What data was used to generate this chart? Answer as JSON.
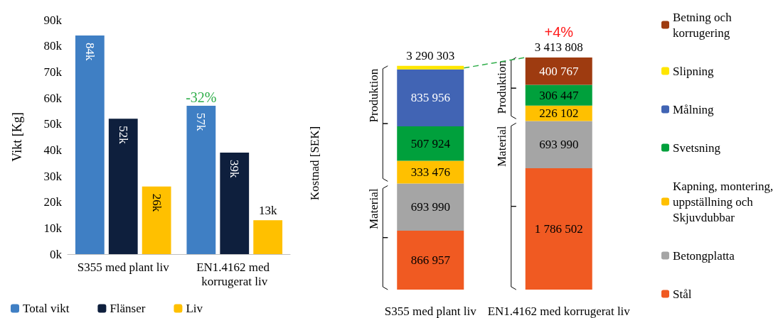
{
  "chart_data": [
    {
      "type": "bar",
      "ylabel": "Vikt [Kg]",
      "categories": [
        "S355 med plant liv",
        "EN1.4162 med korrugerat liv"
      ],
      "series": [
        {
          "name": "Total vikt",
          "color": "#3f7fc4",
          "values": [
            84000,
            57000
          ],
          "value_labels": [
            "84k",
            "57k"
          ]
        },
        {
          "name": "Flänser",
          "color": "#0e1f3d",
          "values": [
            52000,
            39000
          ],
          "value_labels": [
            "52k",
            "39k"
          ]
        },
        {
          "name": "Liv",
          "color": "#ffc000",
          "values": [
            26000,
            13000
          ],
          "value_labels": [
            "26k",
            "13k"
          ]
        }
      ],
      "ylim": [
        0,
        90000
      ],
      "yticks": [
        {
          "value": 0,
          "label": "0k"
        },
        {
          "value": 10000,
          "label": "10k"
        },
        {
          "value": 20000,
          "label": "20k"
        },
        {
          "value": 30000,
          "label": "30k"
        },
        {
          "value": 40000,
          "label": "40k"
        },
        {
          "value": 50000,
          "label": "50k"
        },
        {
          "value": 60000,
          "label": "60k"
        },
        {
          "value": 70000,
          "label": "70k"
        },
        {
          "value": 80000,
          "label": "80k"
        },
        {
          "value": 90000,
          "label": "90k"
        }
      ],
      "annotations": [
        "-32%"
      ],
      "legend": "bottom"
    },
    {
      "type": "bar",
      "stacked": true,
      "ylabel": "Kostnad [SEK]",
      "categories": [
        "S355 med plant liv",
        "EN1.4162 med korrugerat liv"
      ],
      "series": [
        {
          "name": "Stål",
          "color": "#f05a22",
          "values": [
            866957,
            1786502
          ],
          "value_labels": [
            "866 957",
            "1 786 502"
          ]
        },
        {
          "name": "Betongplatta",
          "color": "#a5a5a5",
          "values": [
            693990,
            693990
          ],
          "value_labels": [
            "693 990",
            "693 990"
          ]
        },
        {
          "name": "Kapning, montering, uppställning och Skjuvdubbar",
          "color": "#ffc000",
          "values": [
            333476,
            226102
          ],
          "value_labels": [
            "333 476",
            "226 102"
          ]
        },
        {
          "name": "Svetsning",
          "color": "#00a03c",
          "values": [
            507924,
            306447
          ],
          "value_labels": [
            "507 924",
            "306 447"
          ]
        },
        {
          "name": "Målning",
          "color": "#4164b4",
          "values": [
            835956,
            null
          ],
          "value_labels": [
            "835 956",
            null
          ]
        },
        {
          "name": "Slipning",
          "color": "#ffe600",
          "values": [
            52000,
            null
          ],
          "value_labels": [
            null,
            null
          ]
        },
        {
          "name": "Betning och korrugering",
          "color": "#9e3b10",
          "values": [
            null,
            400767
          ],
          "value_labels": [
            null,
            "400 767"
          ]
        }
      ],
      "totals": [
        "3 290 303",
        "3 413 808"
      ],
      "annotations": [
        "+4%",
        "Produktion",
        "Material",
        "Produktion",
        "Material"
      ],
      "legend": "right"
    }
  ]
}
